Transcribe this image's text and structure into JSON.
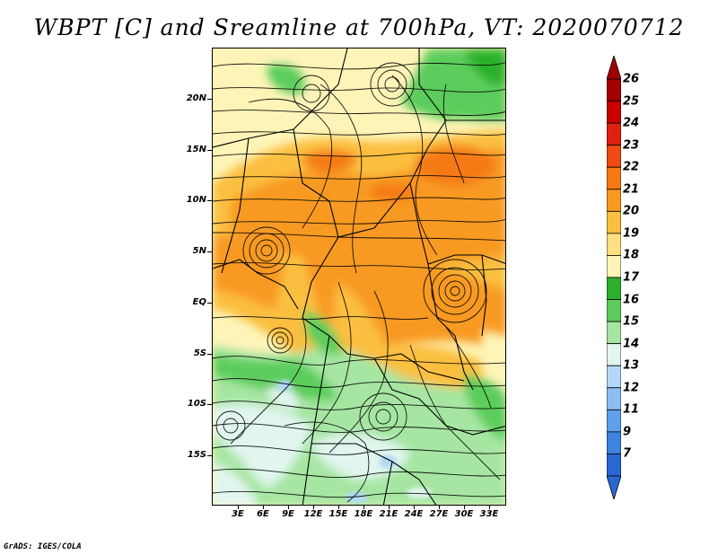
{
  "title": "WBPT [C] and Sreamline at 700hPa, VT: 2020070712",
  "credit": "GrADS: IGES/COLA",
  "map": {
    "lat_labels": [
      "20N",
      "15N",
      "10N",
      "5N",
      "EQ",
      "5S",
      "10S",
      "15S"
    ],
    "lon_labels": [
      "3E",
      "6E",
      "9E",
      "12E",
      "15E",
      "18E",
      "21E",
      "24E",
      "27E",
      "30E",
      "33E"
    ]
  },
  "colorbar": {
    "labels": [
      "26",
      "25",
      "24",
      "23",
      "22",
      "21",
      "20",
      "19",
      "18",
      "17",
      "16",
      "15",
      "14",
      "13",
      "12",
      "11",
      "9",
      "7"
    ],
    "colors": [
      "#a00000",
      "#c80000",
      "#e02010",
      "#f04a14",
      "#f57a14",
      "#f89a20",
      "#fbbf40",
      "#fde080",
      "#fef4b8",
      "#2ab02a",
      "#5ccd5c",
      "#a6e6a2",
      "#e2f6f0",
      "#b4d8f8",
      "#8cbef2",
      "#5ea0ea",
      "#3c84e0",
      "#2868d4"
    ],
    "overflow_top_color": "#a00000",
    "overflow_bottom_color": "#2868d4"
  }
}
